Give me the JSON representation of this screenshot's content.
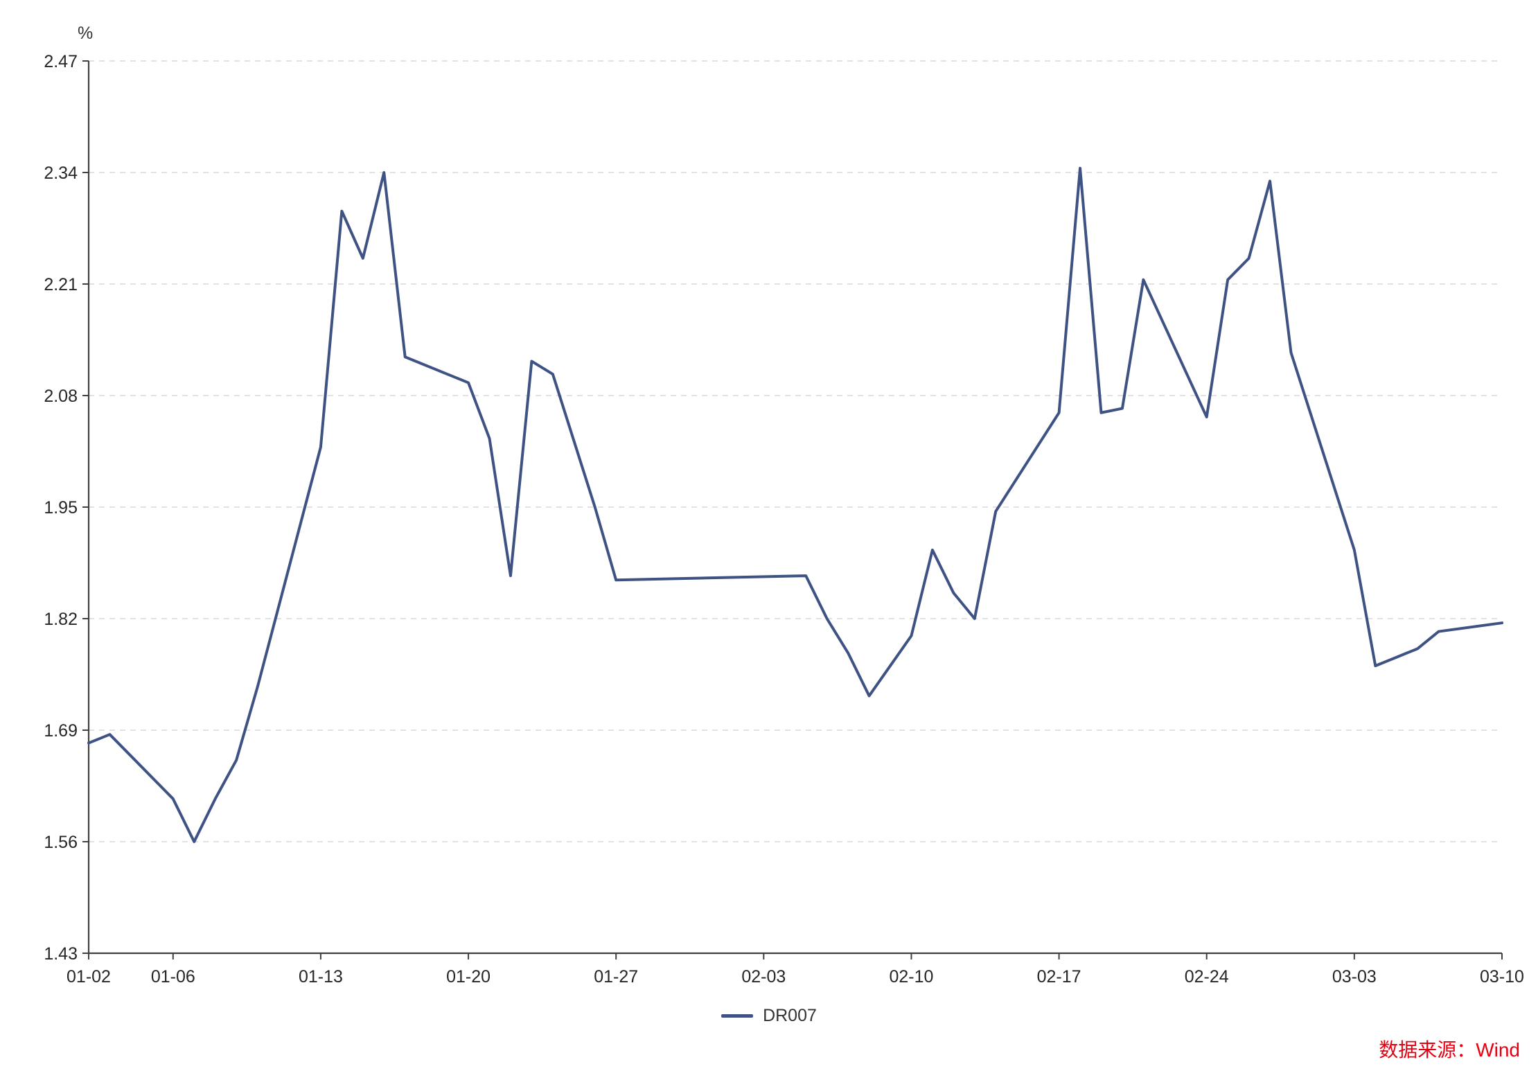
{
  "source_note": {
    "text": "数据来源：Wind",
    "color": "#E60012"
  },
  "chart_data": {
    "type": "line",
    "title": "",
    "xlabel": "",
    "ylabel": "%",
    "ylim": [
      1.43,
      2.47
    ],
    "yticks": [
      1.43,
      1.56,
      1.69,
      1.82,
      1.95,
      2.08,
      2.21,
      2.34,
      2.47
    ],
    "xtick_labels": [
      "01-02",
      "01-06",
      "01-13",
      "01-20",
      "01-27",
      "02-03",
      "02-10",
      "02-17",
      "02-24",
      "03-03",
      "03-10"
    ],
    "x_axis_type": "date",
    "grid": "horizontal-dashed",
    "legend_position": "bottom-center",
    "colors": {
      "axis": "#404040",
      "grid": "#d8d8d8",
      "text": "#262626"
    },
    "series": [
      {
        "name": "DR007",
        "color": "#3E5284",
        "dates": [
          "01-02",
          "01-03",
          "01-06",
          "01-07",
          "01-08",
          "01-09",
          "01-10",
          "01-13",
          "01-14",
          "01-15",
          "01-16",
          "01-17",
          "01-20",
          "01-21",
          "01-22",
          "01-23",
          "01-24",
          "01-26",
          "01-27",
          "02-05",
          "02-06",
          "02-07",
          "02-08",
          "02-10",
          "02-11",
          "02-12",
          "02-13",
          "02-14",
          "02-17",
          "02-18",
          "02-19",
          "02-20",
          "02-21",
          "02-24",
          "02-25",
          "02-26",
          "02-27",
          "02-28",
          "03-03",
          "03-04",
          "03-05",
          "03-06",
          "03-07",
          "03-10"
        ],
        "values": [
          1.675,
          1.685,
          1.61,
          1.56,
          1.61,
          1.655,
          1.74,
          2.02,
          2.295,
          2.24,
          2.34,
          2.125,
          2.095,
          2.03,
          1.87,
          2.12,
          2.105,
          1.95,
          1.865,
          1.87,
          1.82,
          1.78,
          1.73,
          1.8,
          1.9,
          1.85,
          1.82,
          1.945,
          2.06,
          2.345,
          2.06,
          2.065,
          2.215,
          2.055,
          2.215,
          2.24,
          2.33,
          2.13,
          1.9,
          1.765,
          1.775,
          1.785,
          1.805,
          1.815
        ]
      }
    ]
  }
}
